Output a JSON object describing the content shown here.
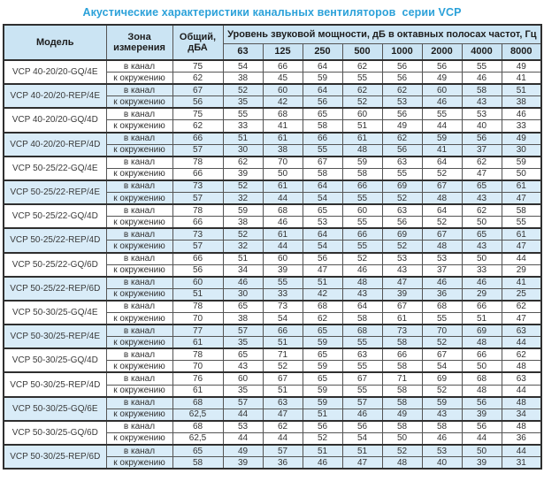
{
  "title": "Акустические характеристики канальных вентиляторов  серии VCP",
  "table": {
    "headers": {
      "model": "Модель",
      "zone": "Зона измерения",
      "total": "Общий, дБА",
      "spl": "Уровень звуковой мощности, дБ в октавных полосах частот, Гц",
      "frequencies": [
        "63",
        "125",
        "250",
        "500",
        "1000",
        "2000",
        "4000",
        "8000"
      ]
    },
    "zone_labels": {
      "duct": "в канал",
      "ambient": "к окружению"
    },
    "rows": [
      {
        "model": "VCP 40-20/20-GQ/4E",
        "highlight": false,
        "duct": {
          "total": "75",
          "values": [
            "54",
            "66",
            "64",
            "62",
            "56",
            "56",
            "55",
            "49"
          ]
        },
        "ambient": {
          "total": "62",
          "values": [
            "38",
            "45",
            "59",
            "55",
            "56",
            "49",
            "46",
            "41"
          ]
        }
      },
      {
        "model": "VCP 40-20/20-REP/4E",
        "highlight": true,
        "duct": {
          "total": "67",
          "values": [
            "52",
            "60",
            "64",
            "62",
            "62",
            "60",
            "58",
            "51"
          ]
        },
        "ambient": {
          "total": "56",
          "values": [
            "35",
            "42",
            "56",
            "52",
            "53",
            "46",
            "43",
            "38"
          ]
        }
      },
      {
        "model": "VCP 40-20/20-GQ/4D",
        "highlight": false,
        "duct": {
          "total": "75",
          "values": [
            "55",
            "68",
            "65",
            "60",
            "56",
            "55",
            "53",
            "46"
          ]
        },
        "ambient": {
          "total": "62",
          "values": [
            "33",
            "41",
            "58",
            "51",
            "49",
            "44",
            "40",
            "33"
          ]
        }
      },
      {
        "model": "VCP 40-20/20-REP/4D",
        "highlight": true,
        "duct": {
          "total": "66",
          "values": [
            "51",
            "61",
            "66",
            "61",
            "62",
            "59",
            "56",
            "49"
          ]
        },
        "ambient": {
          "total": "57",
          "values": [
            "30",
            "38",
            "55",
            "48",
            "56",
            "41",
            "37",
            "30"
          ]
        }
      },
      {
        "model": "VCP 50-25/22-GQ/4E",
        "highlight": false,
        "duct": {
          "total": "78",
          "values": [
            "62",
            "70",
            "67",
            "59",
            "63",
            "64",
            "62",
            "59"
          ]
        },
        "ambient": {
          "total": "66",
          "values": [
            "39",
            "50",
            "58",
            "58",
            "55",
            "52",
            "47",
            "50"
          ]
        }
      },
      {
        "model": "VCP 50-25/22-REP/4E",
        "highlight": true,
        "duct": {
          "total": "73",
          "values": [
            "52",
            "61",
            "64",
            "66",
            "69",
            "67",
            "65",
            "61"
          ]
        },
        "ambient": {
          "total": "57",
          "values": [
            "32",
            "44",
            "54",
            "55",
            "52",
            "48",
            "43",
            "47"
          ]
        }
      },
      {
        "model": "VCP 50-25/22-GQ/4D",
        "highlight": false,
        "duct": {
          "total": "78",
          "values": [
            "59",
            "68",
            "65",
            "60",
            "63",
            "64",
            "62",
            "58"
          ]
        },
        "ambient": {
          "total": "66",
          "values": [
            "38",
            "46",
            "53",
            "55",
            "56",
            "52",
            "50",
            "55"
          ]
        }
      },
      {
        "model": "VCP 50-25/22-REP/4D",
        "highlight": true,
        "duct": {
          "total": "73",
          "values": [
            "52",
            "61",
            "64",
            "66",
            "69",
            "67",
            "65",
            "61"
          ]
        },
        "ambient": {
          "total": "57",
          "values": [
            "32",
            "44",
            "54",
            "55",
            "52",
            "48",
            "43",
            "47"
          ]
        }
      },
      {
        "model": "VCP 50-25/22-GQ/6D",
        "highlight": false,
        "duct": {
          "total": "66",
          "values": [
            "51",
            "60",
            "56",
            "52",
            "53",
            "53",
            "50",
            "44"
          ]
        },
        "ambient": {
          "total": "56",
          "values": [
            "34",
            "39",
            "47",
            "46",
            "43",
            "37",
            "33",
            "29"
          ]
        }
      },
      {
        "model": "VCP 50-25/22-REP/6D",
        "highlight": true,
        "duct": {
          "total": "60",
          "values": [
            "46",
            "55",
            "51",
            "48",
            "47",
            "46",
            "46",
            "41"
          ]
        },
        "ambient": {
          "total": "51",
          "values": [
            "30",
            "33",
            "42",
            "43",
            "39",
            "36",
            "29",
            "25"
          ]
        }
      },
      {
        "model": "VCP 50-30/25-GQ/4E",
        "highlight": false,
        "duct": {
          "total": "78",
          "values": [
            "65",
            "73",
            "68",
            "64",
            "67",
            "68",
            "66",
            "62"
          ]
        },
        "ambient": {
          "total": "70",
          "values": [
            "38",
            "54",
            "62",
            "58",
            "61",
            "55",
            "51",
            "47"
          ]
        }
      },
      {
        "model": "VCP 50-30/25-REP/4E",
        "highlight": true,
        "duct": {
          "total": "77",
          "values": [
            "57",
            "66",
            "65",
            "68",
            "73",
            "70",
            "69",
            "63"
          ]
        },
        "ambient": {
          "total": "61",
          "values": [
            "35",
            "51",
            "59",
            "55",
            "58",
            "52",
            "48",
            "44"
          ]
        }
      },
      {
        "model": "VCP 50-30/25-GQ/4D",
        "highlight": false,
        "duct": {
          "total": "78",
          "values": [
            "65",
            "71",
            "65",
            "63",
            "66",
            "67",
            "66",
            "62"
          ]
        },
        "ambient": {
          "total": "70",
          "values": [
            "43",
            "52",
            "59",
            "55",
            "58",
            "54",
            "50",
            "48"
          ]
        }
      },
      {
        "model": "VCP 50-30/25-REP/4D",
        "highlight": false,
        "duct": {
          "total": "76",
          "values": [
            "60",
            "67",
            "65",
            "67",
            "71",
            "69",
            "68",
            "63"
          ]
        },
        "ambient": {
          "total": "61",
          "values": [
            "35",
            "51",
            "59",
            "55",
            "58",
            "52",
            "48",
            "44"
          ]
        }
      },
      {
        "model": "VCP 50-30/25-GQ/6E",
        "highlight": true,
        "duct": {
          "total": "68",
          "values": [
            "57",
            "63",
            "59",
            "57",
            "58",
            "59",
            "56",
            "48"
          ]
        },
        "ambient": {
          "total": "62,5",
          "values": [
            "44",
            "47",
            "51",
            "46",
            "49",
            "43",
            "39",
            "34"
          ]
        }
      },
      {
        "model": "VCP 50-30/25-GQ/6D",
        "highlight": false,
        "duct": {
          "total": "68",
          "values": [
            "53",
            "62",
            "56",
            "56",
            "58",
            "58",
            "56",
            "48"
          ]
        },
        "ambient": {
          "total": "62,5",
          "values": [
            "44",
            "44",
            "52",
            "54",
            "50",
            "46",
            "44",
            "36"
          ]
        }
      },
      {
        "model": "VCP 50-30/25-REP/6D",
        "highlight": true,
        "duct": {
          "total": "65",
          "values": [
            "49",
            "57",
            "51",
            "51",
            "52",
            "53",
            "50",
            "44"
          ]
        },
        "ambient": {
          "total": "58",
          "values": [
            "39",
            "36",
            "46",
            "47",
            "48",
            "40",
            "39",
            "31"
          ]
        }
      }
    ]
  },
  "colors": {
    "title_text": "#2ba1d9",
    "header_bg": "#cbe4f3",
    "highlight_row_bg": "#d9ecf8",
    "border_dark": "#2f2f2f",
    "border_inner": "#555555",
    "data_text": "#333333"
  }
}
